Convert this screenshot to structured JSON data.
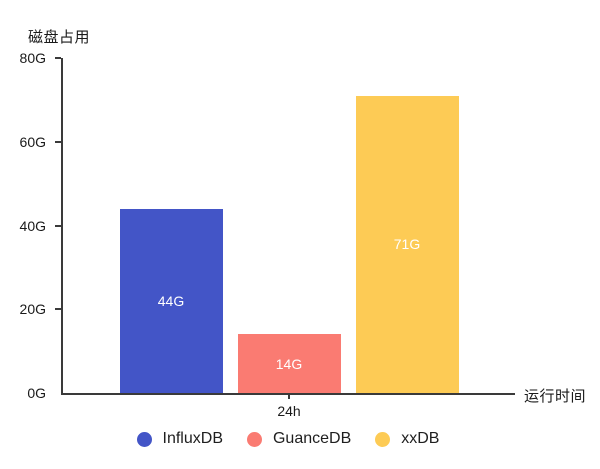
{
  "chart_data": {
    "type": "bar",
    "title": "磁盘占用",
    "ylabel": "磁盘占用",
    "xlabel": "运行时间",
    "categories": [
      "24h"
    ],
    "series": [
      {
        "name": "InfluxDB",
        "values": [
          44
        ],
        "data_labels": [
          "44G"
        ],
        "color": "#4355C7"
      },
      {
        "name": "GuanceDB",
        "values": [
          14
        ],
        "data_labels": [
          "14G"
        ],
        "color": "#FA7B72"
      },
      {
        "name": "xxDB",
        "values": [
          71
        ],
        "data_labels": [
          "71G"
        ],
        "color": "#FDCB55"
      }
    ],
    "ylim": [
      0,
      80
    ],
    "yticks": [
      {
        "value": 0,
        "label": "0G"
      },
      {
        "value": 20,
        "label": "20G"
      },
      {
        "value": 40,
        "label": "40G"
      },
      {
        "value": 60,
        "label": "60G"
      },
      {
        "value": 80,
        "label": "80G"
      }
    ],
    "legend": [
      "InfluxDB",
      "GuanceDB",
      "xxDB"
    ],
    "legend_position": "bottom",
    "grid": false,
    "axis_color": "#3a3a3a",
    "text_color": "#1a1a1a",
    "bar_label_color": "#ffffff",
    "background": "#ffffff"
  }
}
